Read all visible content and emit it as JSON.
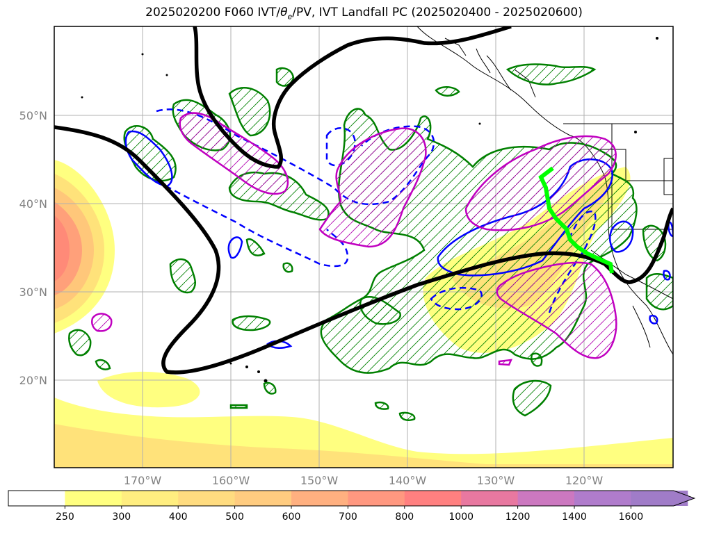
{
  "title_prefix": "2025020200 F060 IVT/",
  "title_theta": "θ",
  "title_theta_sub": "e",
  "title_suffix": "/PV, IVT Landfall PC (2025020400 - 2025020600)",
  "lat_labels": [
    "50°N",
    "40°N",
    "30°N",
    "20°N"
  ],
  "lon_labels": [
    "170°W",
    "160°W",
    "150°W",
    "140°W",
    "130°W",
    "120°W"
  ],
  "colorbar": {
    "ticks": [
      "250",
      "300",
      "400",
      "500",
      "600",
      "700",
      "800",
      "1000",
      "1200",
      "1400",
      "1600"
    ],
    "colors": [
      "#ffffff",
      "#ffff80",
      "#ffee80",
      "#ffdc80",
      "#ffcc80",
      "#ffb080",
      "#ff9880",
      "#ff8080",
      "#e878a0",
      "#cc78c0",
      "#b07ccc",
      "#a07cc8"
    ],
    "extend": "max"
  },
  "colors": {
    "ivt_fill_low": "#ffff80",
    "ivt_fill_mid": "#ffd97a",
    "ivt_fill_high": "#ff8a78",
    "theta_e_contour": "#008000",
    "pv_contour": "#0000ff",
    "pc_contour": "#c000c0",
    "jet_line": "#000000",
    "landfall_line": "#00ff00",
    "coast": "#000000",
    "grid": "#b0b0b0"
  }
}
